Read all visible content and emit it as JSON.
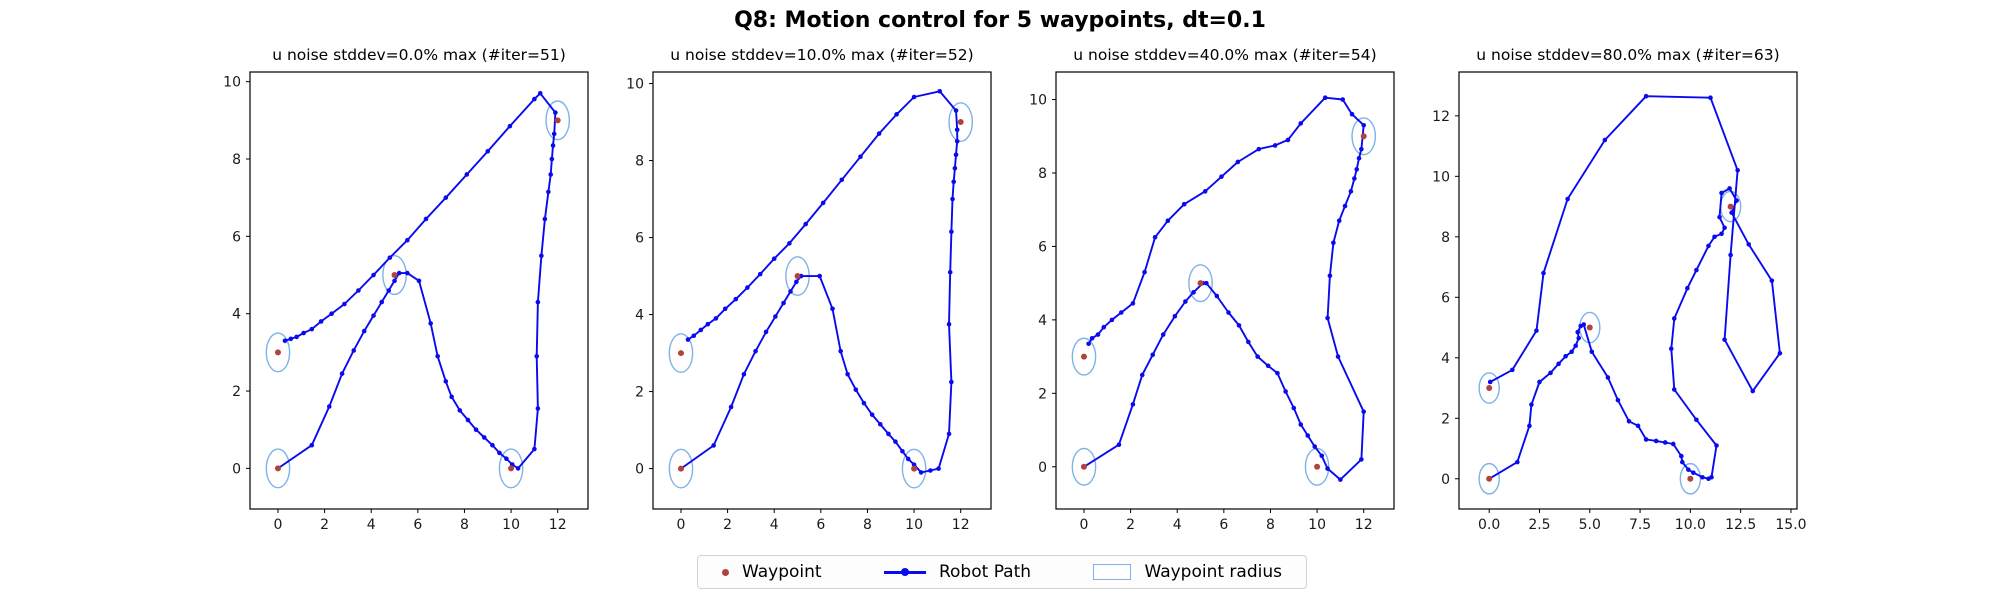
{
  "figure": {
    "title": "Q8: Motion control for 5 waypoints, dt=0.1"
  },
  "colors": {
    "robot_path": "#0a0af0",
    "waypoint": "#b0443c",
    "waypoint_radius": "#7fb2e8",
    "axes": "#000000",
    "tick_text": "#1a1a1a"
  },
  "legend": {
    "items": [
      {
        "label": "Waypoint",
        "marker": "red-dot"
      },
      {
        "label": "Robot Path",
        "marker": "blue-line-with-dot"
      },
      {
        "label": "Waypoint radius",
        "marker": "lightblue-rect-outline"
      }
    ]
  },
  "chart_data": [
    {
      "type": "line",
      "title": "u noise stddev=0.0% max (#iter=51)",
      "xlim": [
        -1.2,
        13.3
      ],
      "ylim": [
        -1.05,
        10.25
      ],
      "grid": false,
      "xticks": {
        "values": [
          0,
          2,
          4,
          6,
          8,
          10,
          12
        ],
        "labels": [
          "0",
          "2",
          "4",
          "6",
          "8",
          "10",
          "12"
        ]
      },
      "yticks": {
        "values": [
          0,
          2,
          4,
          6,
          8,
          10
        ],
        "labels": [
          "0",
          "2",
          "4",
          "6",
          "8",
          "10"
        ]
      },
      "waypoints": [
        [
          0,
          0
        ],
        [
          5,
          5
        ],
        [
          10,
          0
        ],
        [
          12,
          9
        ],
        [
          0,
          3
        ]
      ],
      "waypoint_radius": 0.5,
      "path": [
        [
          0,
          0
        ],
        [
          1.45,
          0.6
        ],
        [
          2.2,
          1.6
        ],
        [
          2.75,
          2.45
        ],
        [
          3.25,
          3.05
        ],
        [
          3.7,
          3.55
        ],
        [
          4.1,
          3.95
        ],
        [
          4.45,
          4.3
        ],
        [
          4.75,
          4.6
        ],
        [
          5.0,
          4.85
        ],
        [
          5.2,
          5.05
        ],
        [
          5.55,
          5.05
        ],
        [
          6.05,
          4.85
        ],
        [
          6.55,
          3.75
        ],
        [
          6.85,
          2.9
        ],
        [
          7.2,
          2.25
        ],
        [
          7.45,
          1.85
        ],
        [
          7.8,
          1.5
        ],
        [
          8.15,
          1.25
        ],
        [
          8.5,
          1.0
        ],
        [
          8.85,
          0.8
        ],
        [
          9.2,
          0.6
        ],
        [
          9.5,
          0.4
        ],
        [
          9.8,
          0.25
        ],
        [
          10.05,
          0.1
        ],
        [
          10.3,
          0.0
        ],
        [
          11.0,
          0.5
        ],
        [
          11.15,
          1.55
        ],
        [
          11.1,
          2.9
        ],
        [
          11.15,
          4.3
        ],
        [
          11.3,
          5.5
        ],
        [
          11.45,
          6.45
        ],
        [
          11.6,
          7.15
        ],
        [
          11.7,
          7.6
        ],
        [
          11.75,
          8.0
        ],
        [
          11.8,
          8.35
        ],
        [
          11.85,
          8.65
        ],
        [
          11.9,
          9.2
        ],
        [
          11.25,
          9.7
        ],
        [
          11.0,
          9.55
        ],
        [
          9.95,
          8.85
        ],
        [
          9.0,
          8.2
        ],
        [
          8.1,
          7.6
        ],
        [
          7.2,
          7.0
        ],
        [
          6.35,
          6.45
        ],
        [
          5.55,
          5.9
        ],
        [
          4.8,
          5.45
        ],
        [
          4.1,
          5.0
        ],
        [
          3.45,
          4.6
        ],
        [
          2.85,
          4.25
        ],
        [
          2.3,
          4.0
        ],
        [
          1.85,
          3.8
        ],
        [
          1.45,
          3.6
        ],
        [
          1.1,
          3.5
        ],
        [
          0.8,
          3.4
        ],
        [
          0.55,
          3.35
        ],
        [
          0.3,
          3.3
        ]
      ]
    },
    {
      "type": "line",
      "title": "u noise stddev=10.0% max (#iter=52)",
      "xlim": [
        -1.2,
        13.3
      ],
      "ylim": [
        -1.05,
        10.3
      ],
      "grid": false,
      "xticks": {
        "values": [
          0,
          2,
          4,
          6,
          8,
          10,
          12
        ],
        "labels": [
          "0",
          "2",
          "4",
          "6",
          "8",
          "10",
          "12"
        ]
      },
      "yticks": {
        "values": [
          0,
          2,
          4,
          6,
          8,
          10
        ],
        "labels": [
          "0",
          "2",
          "4",
          "6",
          "8",
          "10"
        ]
      },
      "waypoints": [
        [
          0,
          0
        ],
        [
          5,
          5
        ],
        [
          10,
          0
        ],
        [
          12,
          9
        ],
        [
          0,
          3
        ]
      ],
      "waypoint_radius": 0.5,
      "path": [
        [
          0,
          0
        ],
        [
          1.4,
          0.6
        ],
        [
          2.15,
          1.6
        ],
        [
          2.7,
          2.45
        ],
        [
          3.2,
          3.05
        ],
        [
          3.65,
          3.55
        ],
        [
          4.05,
          3.95
        ],
        [
          4.4,
          4.3
        ],
        [
          4.7,
          4.6
        ],
        [
          4.95,
          4.85
        ],
        [
          5.15,
          5.0
        ],
        [
          5.95,
          5.0
        ],
        [
          6.5,
          4.15
        ],
        [
          6.85,
          3.05
        ],
        [
          7.15,
          2.45
        ],
        [
          7.5,
          2.05
        ],
        [
          7.85,
          1.7
        ],
        [
          8.2,
          1.4
        ],
        [
          8.55,
          1.15
        ],
        [
          8.9,
          0.9
        ],
        [
          9.2,
          0.7
        ],
        [
          9.5,
          0.45
        ],
        [
          9.75,
          0.25
        ],
        [
          10.0,
          0.1
        ],
        [
          10.3,
          -0.1
        ],
        [
          10.7,
          -0.05
        ],
        [
          11.05,
          0.0
        ],
        [
          11.5,
          0.9
        ],
        [
          11.6,
          2.25
        ],
        [
          11.5,
          3.75
        ],
        [
          11.55,
          5.1
        ],
        [
          11.6,
          6.15
        ],
        [
          11.65,
          7.0
        ],
        [
          11.7,
          7.45
        ],
        [
          11.75,
          7.8
        ],
        [
          11.8,
          8.15
        ],
        [
          11.85,
          8.5
        ],
        [
          11.85,
          8.8
        ],
        [
          11.8,
          9.3
        ],
        [
          11.1,
          9.8
        ],
        [
          10.0,
          9.65
        ],
        [
          9.25,
          9.2
        ],
        [
          8.5,
          8.7
        ],
        [
          7.7,
          8.1
        ],
        [
          6.9,
          7.5
        ],
        [
          6.1,
          6.9
        ],
        [
          5.35,
          6.35
        ],
        [
          4.65,
          5.85
        ],
        [
          4.0,
          5.45
        ],
        [
          3.4,
          5.05
        ],
        [
          2.85,
          4.7
        ],
        [
          2.35,
          4.4
        ],
        [
          1.9,
          4.15
        ],
        [
          1.5,
          3.9
        ],
        [
          1.15,
          3.75
        ],
        [
          0.85,
          3.6
        ],
        [
          0.55,
          3.45
        ],
        [
          0.3,
          3.35
        ]
      ]
    },
    {
      "type": "line",
      "title": "u noise stddev=40.0% max (#iter=54)",
      "xlim": [
        -1.2,
        13.3
      ],
      "ylim": [
        -1.15,
        10.75
      ],
      "grid": false,
      "xticks": {
        "values": [
          0,
          2,
          4,
          6,
          8,
          10,
          12
        ],
        "labels": [
          "0",
          "2",
          "4",
          "6",
          "8",
          "10",
          "12"
        ]
      },
      "yticks": {
        "values": [
          0,
          2,
          4,
          6,
          8,
          10
        ],
        "labels": [
          "0",
          "2",
          "4",
          "6",
          "8",
          "10"
        ]
      },
      "waypoints": [
        [
          0,
          0
        ],
        [
          5,
          5
        ],
        [
          10,
          0
        ],
        [
          12,
          9
        ],
        [
          0,
          3
        ]
      ],
      "waypoint_radius": 0.5,
      "path": [
        [
          0,
          0
        ],
        [
          1.5,
          0.6
        ],
        [
          2.1,
          1.7
        ],
        [
          2.5,
          2.5
        ],
        [
          2.95,
          3.05
        ],
        [
          3.4,
          3.6
        ],
        [
          3.9,
          4.1
        ],
        [
          4.35,
          4.5
        ],
        [
          4.7,
          4.75
        ],
        [
          5.1,
          5.0
        ],
        [
          5.25,
          5.0
        ],
        [
          5.7,
          4.65
        ],
        [
          6.2,
          4.2
        ],
        [
          6.65,
          3.85
        ],
        [
          7.05,
          3.4
        ],
        [
          7.45,
          3.0
        ],
        [
          7.9,
          2.75
        ],
        [
          8.3,
          2.55
        ],
        [
          8.65,
          2.05
        ],
        [
          9.0,
          1.6
        ],
        [
          9.3,
          1.15
        ],
        [
          9.6,
          0.85
        ],
        [
          9.9,
          0.55
        ],
        [
          10.2,
          0.3
        ],
        [
          10.45,
          -0.05
        ],
        [
          11.0,
          -0.35
        ],
        [
          11.9,
          0.2
        ],
        [
          12.0,
          1.5
        ],
        [
          10.9,
          3.0
        ],
        [
          10.45,
          4.05
        ],
        [
          10.55,
          5.2
        ],
        [
          10.7,
          6.1
        ],
        [
          10.95,
          6.7
        ],
        [
          11.2,
          7.1
        ],
        [
          11.45,
          7.5
        ],
        [
          11.6,
          7.85
        ],
        [
          11.7,
          8.1
        ],
        [
          11.8,
          8.4
        ],
        [
          11.9,
          8.65
        ],
        [
          12.0,
          9.3
        ],
        [
          11.5,
          9.6
        ],
        [
          11.1,
          10.0
        ],
        [
          10.35,
          10.05
        ],
        [
          9.3,
          9.35
        ],
        [
          8.75,
          8.9
        ],
        [
          8.2,
          8.75
        ],
        [
          7.5,
          8.65
        ],
        [
          6.6,
          8.3
        ],
        [
          5.9,
          7.9
        ],
        [
          5.2,
          7.5
        ],
        [
          4.3,
          7.15
        ],
        [
          3.6,
          6.7
        ],
        [
          3.05,
          6.25
        ],
        [
          2.6,
          5.3
        ],
        [
          2.1,
          4.45
        ],
        [
          1.6,
          4.2
        ],
        [
          1.2,
          4.0
        ],
        [
          0.85,
          3.8
        ],
        [
          0.6,
          3.6
        ],
        [
          0.35,
          3.5
        ],
        [
          0.2,
          3.35
        ]
      ]
    },
    {
      "type": "line",
      "title": "u noise stddev=80.0% max (#iter=63)",
      "xlim": [
        -1.5,
        15.3
      ],
      "ylim": [
        -1.0,
        13.45
      ],
      "grid": false,
      "xticks": {
        "values": [
          0,
          2.5,
          5,
          7.5,
          10,
          12.5,
          15
        ],
        "labels": [
          "0.0",
          "2.5",
          "5.0",
          "7.5",
          "10.0",
          "12.5",
          "15.0"
        ]
      },
      "yticks": {
        "values": [
          0,
          2,
          4,
          6,
          8,
          10,
          12
        ],
        "labels": [
          "0",
          "2",
          "4",
          "6",
          "8",
          "10",
          "12"
        ]
      },
      "waypoints": [
        [
          0,
          0
        ],
        [
          5,
          5
        ],
        [
          10,
          0
        ],
        [
          12,
          9
        ],
        [
          0,
          3
        ]
      ],
      "waypoint_radius": 0.5,
      "path": [
        [
          0,
          0
        ],
        [
          1.4,
          0.55
        ],
        [
          2.0,
          1.75
        ],
        [
          2.1,
          2.45
        ],
        [
          2.5,
          3.2
        ],
        [
          3.05,
          3.5
        ],
        [
          3.45,
          3.8
        ],
        [
          3.8,
          4.05
        ],
        [
          4.1,
          4.2
        ],
        [
          4.3,
          4.4
        ],
        [
          4.45,
          4.65
        ],
        [
          4.4,
          4.85
        ],
        [
          4.55,
          5.05
        ],
        [
          4.7,
          5.1
        ],
        [
          5.1,
          4.2
        ],
        [
          5.9,
          3.35
        ],
        [
          6.4,
          2.6
        ],
        [
          6.95,
          1.9
        ],
        [
          7.4,
          1.75
        ],
        [
          7.8,
          1.3
        ],
        [
          8.3,
          1.25
        ],
        [
          8.75,
          1.2
        ],
        [
          9.15,
          1.15
        ],
        [
          9.55,
          0.75
        ],
        [
          9.6,
          0.55
        ],
        [
          9.9,
          0.3
        ],
        [
          10.15,
          0.2
        ],
        [
          10.6,
          0.05
        ],
        [
          10.9,
          0.0
        ],
        [
          11.05,
          0.05
        ],
        [
          11.3,
          1.1
        ],
        [
          10.3,
          1.95
        ],
        [
          9.2,
          2.95
        ],
        [
          9.05,
          4.3
        ],
        [
          9.2,
          5.3
        ],
        [
          9.85,
          6.3
        ],
        [
          10.3,
          6.9
        ],
        [
          10.9,
          7.7
        ],
        [
          11.2,
          8.0
        ],
        [
          11.55,
          8.1
        ],
        [
          11.7,
          8.3
        ],
        [
          11.45,
          8.65
        ],
        [
          11.55,
          9.45
        ],
        [
          11.95,
          9.6
        ],
        [
          12.3,
          9.2
        ],
        [
          12.05,
          8.8
        ],
        [
          12.9,
          7.75
        ],
        [
          14.05,
          6.55
        ],
        [
          14.45,
          4.15
        ],
        [
          13.1,
          2.9
        ],
        [
          11.7,
          4.6
        ],
        [
          12.0,
          7.4
        ],
        [
          12.35,
          10.2
        ],
        [
          11.0,
          12.6
        ],
        [
          7.8,
          12.65
        ],
        [
          5.75,
          11.2
        ],
        [
          3.9,
          9.25
        ],
        [
          2.7,
          6.8
        ],
        [
          2.35,
          4.9
        ],
        [
          1.15,
          3.6
        ],
        [
          0.05,
          3.2
        ]
      ]
    }
  ]
}
